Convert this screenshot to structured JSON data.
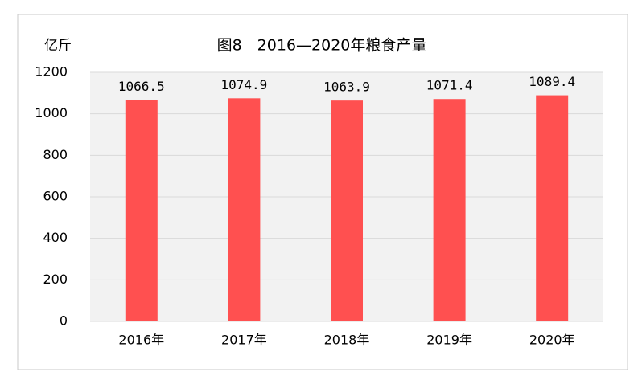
{
  "chart_data": {
    "type": "bar",
    "title": "图8　2016—2020年粮食产量",
    "y_label": "亿斤",
    "categories": [
      "2016年",
      "2017年",
      "2018年",
      "2019年",
      "2020年"
    ],
    "values": [
      1066.5,
      1074.9,
      1063.9,
      1071.4,
      1089.4
    ],
    "color": "#ff5050",
    "ylim": [
      0,
      1200
    ],
    "yticks": [
      0,
      200,
      400,
      600,
      800,
      1000,
      1200
    ],
    "grid": true
  }
}
